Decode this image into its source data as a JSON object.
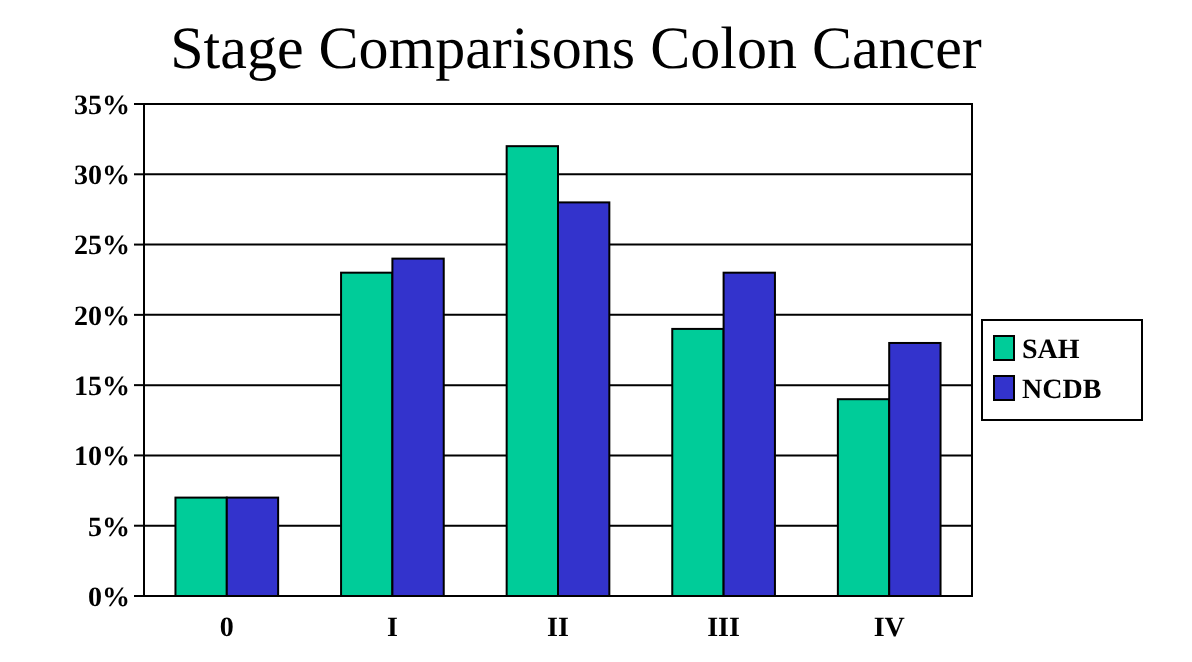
{
  "chart_data": {
    "type": "bar",
    "title": "Stage Comparisons Colon Cancer",
    "categories": [
      "0",
      "I",
      "II",
      "III",
      "IV"
    ],
    "series": [
      {
        "name": "SAH",
        "color": "#00cc99",
        "values": [
          7,
          23,
          32,
          19,
          14
        ]
      },
      {
        "name": "NCDB",
        "color": "#3333cc",
        "values": [
          7,
          24,
          28,
          23,
          18
        ]
      }
    ],
    "ylim": [
      0,
      35
    ],
    "yticks": [
      {
        "value": 0,
        "label": "0%"
      },
      {
        "value": 5,
        "label": "5%"
      },
      {
        "value": 10,
        "label": "10%"
      },
      {
        "value": 15,
        "label": "15%"
      },
      {
        "value": 20,
        "label": "20%"
      },
      {
        "value": 25,
        "label": "25%"
      },
      {
        "value": 30,
        "label": "30%"
      },
      {
        "value": 35,
        "label": "35%"
      }
    ],
    "grid": "y",
    "legend": "right"
  }
}
